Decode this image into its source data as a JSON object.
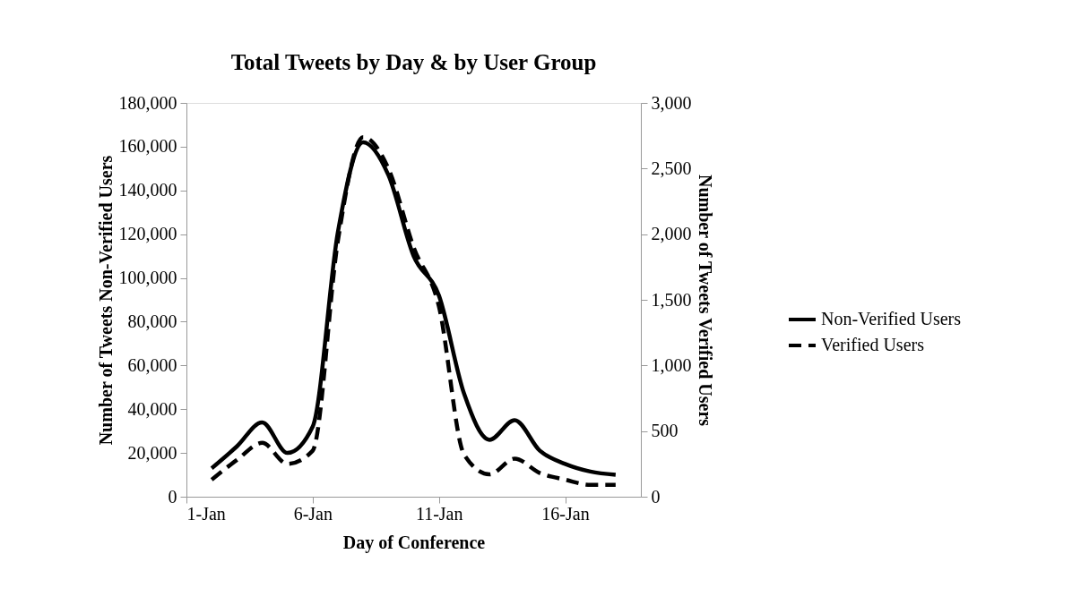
{
  "chart_data": {
    "type": "line",
    "title": "Total Tweets by Day & by User Group",
    "xlabel": "Day of Conference",
    "ylabel": "Number of Tweets Non-Verified Users",
    "y2label": "Number of Tweets Verified Users",
    "x": [
      "--01-02",
      "--01-03",
      "--01-04",
      "--01-05",
      "--01-06",
      "--01-07",
      "--01-08",
      "--01-09",
      "--01-10",
      "--01-11",
      "--01-12",
      "--01-13",
      "--01-14",
      "--01-15",
      "--01-16",
      "--01-17",
      "--01-18"
    ],
    "series": [
      {
        "name": "Non-Verified Users",
        "color": "#000000",
        "line_style": "solid",
        "values": [
          13000,
          23000,
          34000,
          20000,
          32000,
          121000,
          162000,
          147000,
          110000,
          92000,
          47000,
          26000,
          35000,
          21000,
          15000,
          11500,
          10000
        ]
      },
      {
        "name": "Verified Users",
        "color": "#000000",
        "line_style": "dashed",
        "axis": "y2",
        "values": [
          130,
          280,
          410,
          250,
          350,
          1950,
          2740,
          2500,
          1900,
          1450,
          320,
          170,
          290,
          180,
          130,
          90,
          90
        ]
      }
    ],
    "xlim": [
      "--01-01",
      "--01-19"
    ],
    "xticks": [
      {
        "value": "--01-01",
        "label": "1-Jan"
      },
      {
        "value": "--01-06",
        "label": "6-Jan"
      },
      {
        "value": "--01-11",
        "label": "11-Jan"
      },
      {
        "value": "--01-16",
        "label": "16-Jan"
      }
    ],
    "ylim": [
      0,
      180000
    ],
    "yticks": [
      0,
      {
        "value": 20000,
        "label": "20,000"
      },
      {
        "value": 40000,
        "label": "40,000"
      },
      {
        "value": 60000,
        "label": "60,000"
      },
      {
        "value": 80000,
        "label": "80,000"
      },
      {
        "value": 100000,
        "label": "100,000"
      },
      {
        "value": 120000,
        "label": "120,000"
      },
      {
        "value": 140000,
        "label": "140,000"
      },
      {
        "value": 160000,
        "label": "160,000"
      },
      {
        "value": 180000,
        "label": "180,000"
      }
    ],
    "y2lim": [
      0,
      3000
    ],
    "y2ticks": [
      0,
      500,
      {
        "value": 1000,
        "label": "1,000"
      },
      {
        "value": 1500,
        "label": "1,500"
      },
      {
        "value": 2000,
        "label": "2,000"
      },
      {
        "value": 2500,
        "label": "2,500"
      },
      {
        "value": 3000,
        "label": "3,000"
      }
    ],
    "grid": false,
    "legend": "right",
    "marker": "none"
  }
}
